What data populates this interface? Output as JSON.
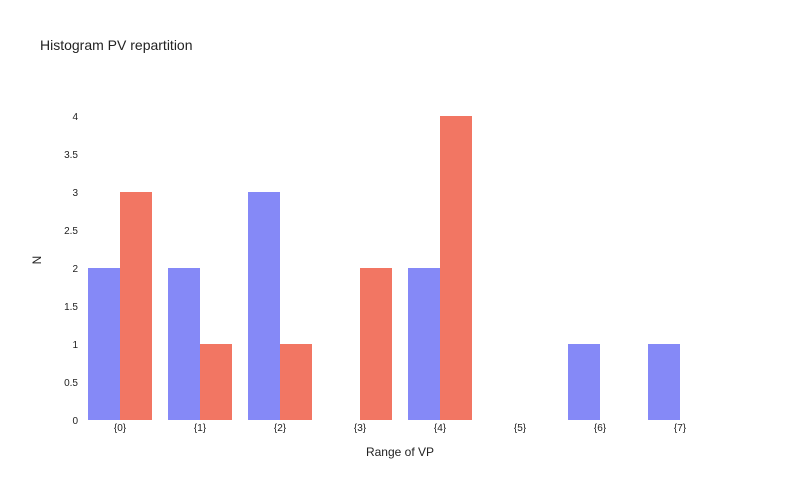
{
  "chart_data": {
    "type": "bar",
    "title": "Histogram PV repartition",
    "xlabel": "Range of VP",
    "ylabel": "N",
    "categories": [
      "{0}",
      "{1}",
      "{2}",
      "{3}",
      "{4}",
      "{5}",
      "{6}",
      "{7}"
    ],
    "series": [
      {
        "values": [
          2,
          2,
          3,
          0,
          2,
          0,
          1,
          1
        ],
        "color": "#8589f7"
      },
      {
        "values": [
          3,
          1,
          1,
          2,
          4,
          0,
          0,
          0
        ],
        "color": "#f27663"
      }
    ],
    "ylim": [
      0,
      4
    ],
    "yticks": [
      "0",
      "0.5",
      "1",
      "1.5",
      "2",
      "2.5",
      "3",
      "3.5",
      "4"
    ],
    "grid": false,
    "legend": "none"
  }
}
